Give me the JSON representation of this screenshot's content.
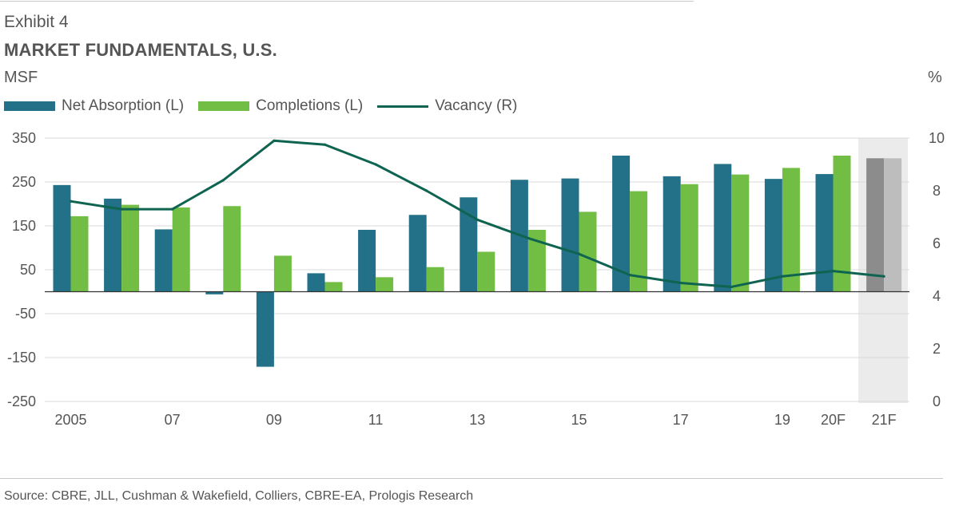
{
  "header": {
    "exhibit": "Exhibit 4",
    "title": "MARKET FUNDAMENTALS, U.S.",
    "unit_left": "MSF",
    "unit_right": "%"
  },
  "legend": [
    {
      "label": "Net Absorption (L)",
      "kind": "bar"
    },
    {
      "label": "Completions (L)",
      "kind": "bar"
    },
    {
      "label": "Vacancy (R)",
      "kind": "line"
    }
  ],
  "colors": {
    "absorption": "#237089",
    "completions": "#72BE44",
    "vacancy": "#0E6450",
    "forecast_absorption": "#8C8C8C",
    "forecast_completions": "#BDBDBD",
    "forecast_shade": "#EBEBEB",
    "grid": "#D9D9D9"
  },
  "source": "Source: CBRE, JLL, Cushman & Wakefield, Colliers, CBRE-EA, Prologis Research",
  "chart_data": {
    "type": "bar",
    "categories": [
      "2005",
      "2006",
      "2007",
      "2008",
      "2009",
      "2010",
      "2011",
      "2012",
      "2013",
      "2014",
      "2015",
      "2016",
      "2017",
      "2018",
      "2019",
      "20F",
      "21F"
    ],
    "x_tick_labels": [
      "2005",
      "",
      "07",
      "",
      "09",
      "",
      "11",
      "",
      "13",
      "",
      "15",
      "",
      "17",
      "",
      "19",
      "20F",
      "21F"
    ],
    "forecast_categories": [
      "21F"
    ],
    "series": [
      {
        "name": "Net Absorption (L)",
        "type": "bar",
        "axis": "left",
        "values": [
          243,
          212,
          142,
          -6,
          -171,
          42,
          141,
          175,
          215,
          255,
          258,
          310,
          263,
          291,
          257,
          268,
          304
        ]
      },
      {
        "name": "Completions (L)",
        "type": "bar",
        "axis": "left",
        "values": [
          172,
          198,
          192,
          195,
          82,
          22,
          33,
          56,
          91,
          141,
          182,
          229,
          245,
          267,
          282,
          310,
          304
        ]
      },
      {
        "name": "Vacancy (R)",
        "type": "line",
        "axis": "right",
        "values": [
          7.6,
          7.3,
          7.3,
          8.4,
          9.9,
          9.75,
          9.0,
          8.0,
          6.9,
          6.2,
          5.6,
          4.8,
          4.5,
          4.35,
          4.75,
          4.95,
          4.75
        ]
      }
    ],
    "y_left": {
      "ticks": [
        350,
        250,
        150,
        50,
        -50,
        -150,
        -250
      ],
      "tick_labels": [
        "350",
        "250",
        "150",
        "50",
        "-50",
        "-150",
        "-250"
      ],
      "range": [
        -250,
        350
      ],
      "zero": 0
    },
    "y_right": {
      "ticks": [
        10,
        8,
        6,
        4,
        2,
        0
      ],
      "tick_labels": [
        "10",
        "8",
        "6",
        "4",
        "2",
        "0"
      ],
      "range": [
        0,
        10
      ]
    },
    "grid": true
  }
}
